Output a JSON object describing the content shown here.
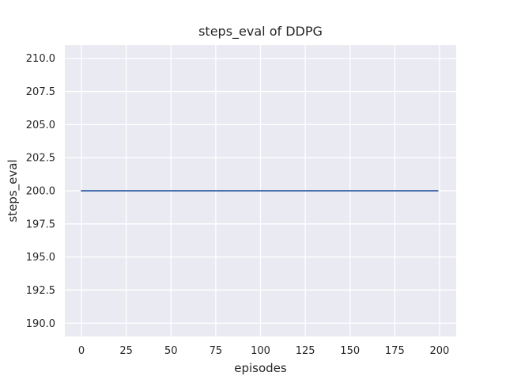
{
  "chart_data": {
    "type": "line",
    "title": "steps_eval of DDPG",
    "xlabel": "episodes",
    "ylabel": "steps_eval",
    "series": [
      {
        "name": "steps_eval",
        "color": "#4c72b0",
        "x": [
          0,
          199
        ],
        "y": [
          200,
          200
        ]
      }
    ],
    "x_ticks": [
      0,
      25,
      50,
      75,
      100,
      125,
      150,
      175,
      200
    ],
    "x_tick_labels": [
      "0",
      "25",
      "50",
      "75",
      "100",
      "125",
      "150",
      "175",
      "200"
    ],
    "y_ticks": [
      190,
      192.5,
      195,
      197.5,
      200,
      202.5,
      205,
      207.5,
      210
    ],
    "y_tick_labels": [
      "190.0",
      "192.5",
      "195.0",
      "197.5",
      "200.0",
      "202.5",
      "205.0",
      "207.5",
      "210.0"
    ],
    "xlim": [
      -9.3,
      209.3
    ],
    "ylim": [
      189,
      211
    ],
    "grid": true,
    "legend": null,
    "style": {
      "figure_bg": "#ffffff",
      "axes_bg": "#eaeaf2",
      "grid_color": "#ffffff",
      "text_color": "#262626",
      "line_color": "#4c72b0",
      "tick_font_px": 13
    }
  }
}
